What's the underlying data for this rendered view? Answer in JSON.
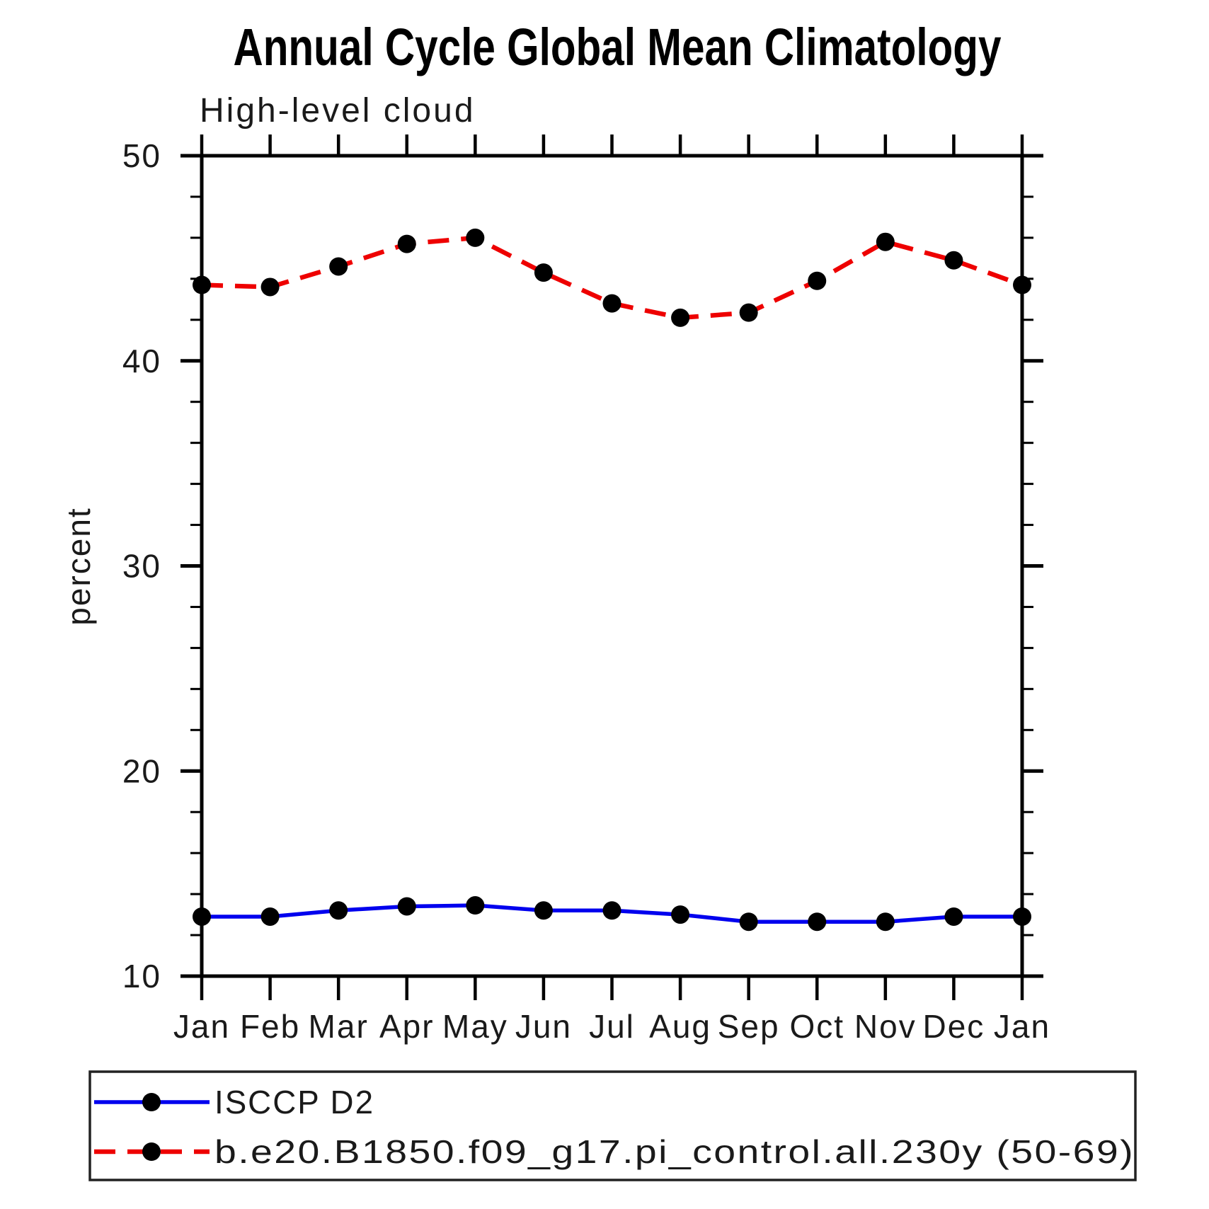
{
  "title": "Annual Cycle Global Mean Climatology",
  "subtitle": "High-level cloud",
  "chart_data": {
    "type": "line",
    "categories": [
      "Jan",
      "Feb",
      "Mar",
      "Apr",
      "May",
      "Jun",
      "Jul",
      "Aug",
      "Sep",
      "Oct",
      "Nov",
      "Dec",
      "Jan"
    ],
    "title": "Annual Cycle Global Mean Climatology",
    "subtitle": "High-level cloud",
    "xlabel": "",
    "ylabel": "percent",
    "ylim": [
      10,
      50
    ],
    "yticks_major": [
      10,
      20,
      30,
      40,
      50
    ],
    "ytick_minor_interval": 2,
    "grid": false,
    "legend_position": "bottom-left-box",
    "series": [
      {
        "name": "ISCCP D2",
        "style": "solid",
        "color": "#0000ee",
        "marker": "filled-circle",
        "marker_color": "#000000",
        "values": [
          12.9,
          12.9,
          13.2,
          13.4,
          13.45,
          13.2,
          13.2,
          13.0,
          12.65,
          12.65,
          12.65,
          12.9,
          12.9
        ]
      },
      {
        "name": "b.e20.B1850.f09_g17.pi_control.all.230y (50-69)",
        "style": "dashed",
        "color": "#ee0000",
        "marker": "filled-circle",
        "marker_color": "#000000",
        "values": [
          43.7,
          43.6,
          44.6,
          45.7,
          46.0,
          44.3,
          42.8,
          42.1,
          42.35,
          43.9,
          45.8,
          44.9,
          43.7
        ]
      }
    ]
  },
  "colors": {
    "background": "#ffffff",
    "axis": "#000000",
    "series_blue": "#0000ee",
    "series_red": "#ee0000",
    "marker": "#000000"
  }
}
